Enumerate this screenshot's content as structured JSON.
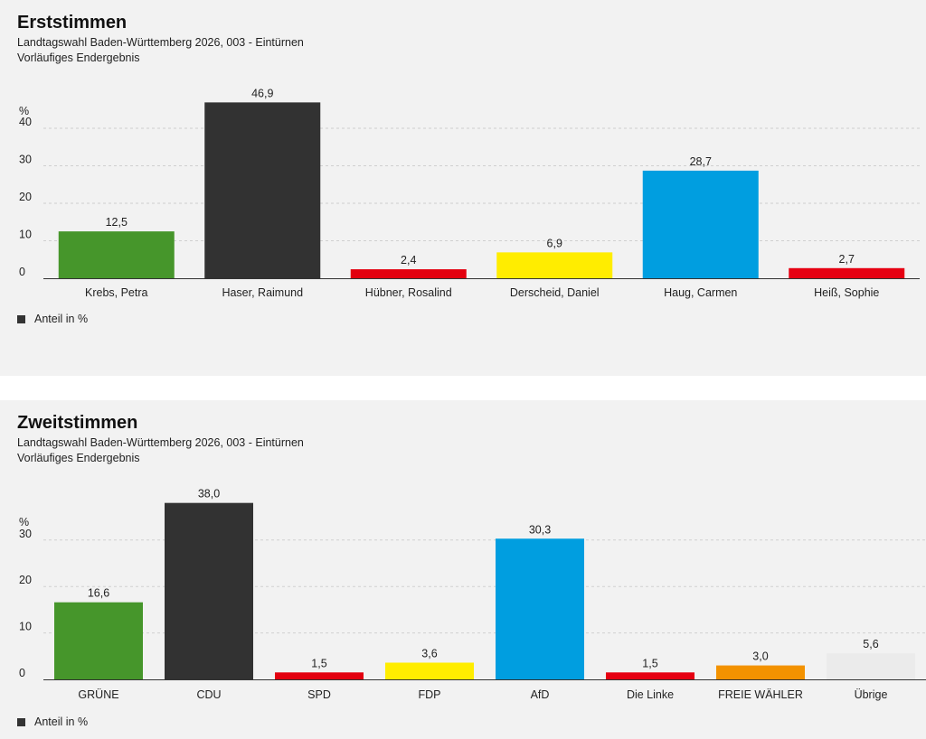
{
  "legend_label": "Anteil in %",
  "chart_data": [
    {
      "type": "bar",
      "title": "Erststimmen",
      "subtitle": "Landtagswahl Baden-Württemberg 2026, 003 - Eintürnen",
      "status": "Vorläufiges Endergebnis",
      "ylabel": "%",
      "ylim": [
        0,
        50
      ],
      "yticks": [
        0,
        10,
        20,
        30,
        40
      ],
      "grid": true,
      "legend_position": "bottom-left",
      "categories": [
        "Krebs, Petra",
        "Haser, Raimund",
        "Hübner, Rosalind",
        "Derscheid, Daniel",
        "Haug, Carmen",
        "Heiß, Sophie"
      ],
      "values": [
        12.5,
        46.9,
        2.4,
        6.9,
        28.7,
        2.7
      ],
      "value_labels": [
        "12,5",
        "46,9",
        "2,4",
        "6,9",
        "28,7",
        "2,7"
      ],
      "colors": [
        "#46962b",
        "#323232",
        "#e3000f",
        "#ffed00",
        "#009ee0",
        "#e60012"
      ],
      "series_name": "Anteil in %"
    },
    {
      "type": "bar",
      "title": "Zweitstimmen",
      "subtitle": "Landtagswahl Baden-Württemberg 2026, 003 - Eintürnen",
      "status": "Vorläufiges Endergebnis",
      "ylabel": "%",
      "ylim": [
        0,
        40
      ],
      "yticks": [
        0,
        10,
        20,
        30
      ],
      "grid": true,
      "legend_position": "bottom-left",
      "categories": [
        "GRÜNE",
        "CDU",
        "SPD",
        "FDP",
        "AfD",
        "Die Linke",
        "FREIE WÄHLER",
        "Übrige"
      ],
      "values": [
        16.6,
        38.0,
        1.5,
        3.6,
        30.3,
        1.5,
        3.0,
        5.6
      ],
      "value_labels": [
        "16,6",
        "38,0",
        "1,5",
        "3,6",
        "30,3",
        "1,5",
        "3,0",
        "5,6"
      ],
      "colors": [
        "#46962b",
        "#323232",
        "#e3000f",
        "#ffed00",
        "#009ee0",
        "#e60012",
        "#f39200",
        "#ebebeb"
      ],
      "series_name": "Anteil in %"
    }
  ]
}
